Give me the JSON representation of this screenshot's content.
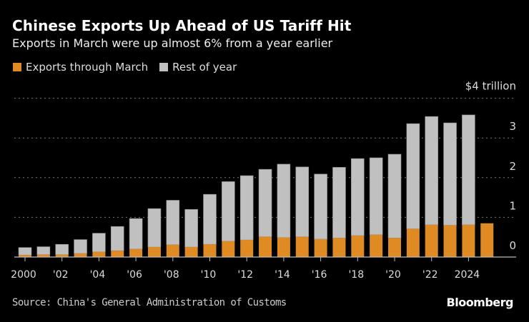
{
  "chart_data": {
    "type": "bar",
    "stacked": true,
    "title": "Chinese Exports Up Ahead of US Tariff Hit",
    "subtitle": "Exports in March were up almost 6% from a year earlier",
    "categories": [
      2000,
      2001,
      2002,
      2003,
      2004,
      2005,
      2006,
      2007,
      2008,
      2009,
      2010,
      2011,
      2012,
      2013,
      2014,
      2015,
      2016,
      2017,
      2018,
      2019,
      2020,
      2021,
      2022,
      2023,
      2024,
      2025
    ],
    "series": [
      {
        "name": "Exports through March",
        "color": "#e08a24",
        "values": [
          0.05,
          0.06,
          0.06,
          0.09,
          0.13,
          0.16,
          0.2,
          0.25,
          0.31,
          0.25,
          0.32,
          0.4,
          0.43,
          0.51,
          0.49,
          0.51,
          0.45,
          0.48,
          0.54,
          0.56,
          0.48,
          0.71,
          0.81,
          0.8,
          0.81,
          0.85
        ]
      },
      {
        "name": "Rest of year",
        "color": "#c0c0c0",
        "values": [
          0.19,
          0.2,
          0.26,
          0.35,
          0.47,
          0.61,
          0.77,
          0.97,
          1.12,
          0.95,
          1.26,
          1.5,
          1.62,
          1.7,
          1.85,
          1.76,
          1.64,
          1.78,
          1.94,
          1.94,
          2.11,
          2.65,
          2.73,
          2.58,
          2.77,
          null
        ]
      }
    ],
    "totals_note_units": "trillion USD",
    "ylim": [
      0,
      4
    ],
    "yticks": [
      0,
      1,
      2,
      3,
      4
    ],
    "ytick_labels": [
      "0",
      "1",
      "2",
      "3",
      "$4 trillion"
    ],
    "xtick_years": [
      2000,
      2002,
      2004,
      2006,
      2008,
      2010,
      2012,
      2014,
      2016,
      2018,
      2020,
      2022,
      2024
    ],
    "xtick_labels": [
      "2000",
      "'02",
      "'04",
      "'06",
      "'08",
      "'10",
      "'12",
      "'14",
      "'16",
      "'18",
      "'20",
      "'22",
      "2024"
    ],
    "grid": "horizontal-dotted",
    "legend_placement": "top-left",
    "yaxis_side": "right"
  },
  "source": "Source: China's General Administration of Customs",
  "logo": "Bloomberg",
  "colors": {
    "background": "#000000",
    "grid": "#777777",
    "axis": "#bbbbbb"
  }
}
